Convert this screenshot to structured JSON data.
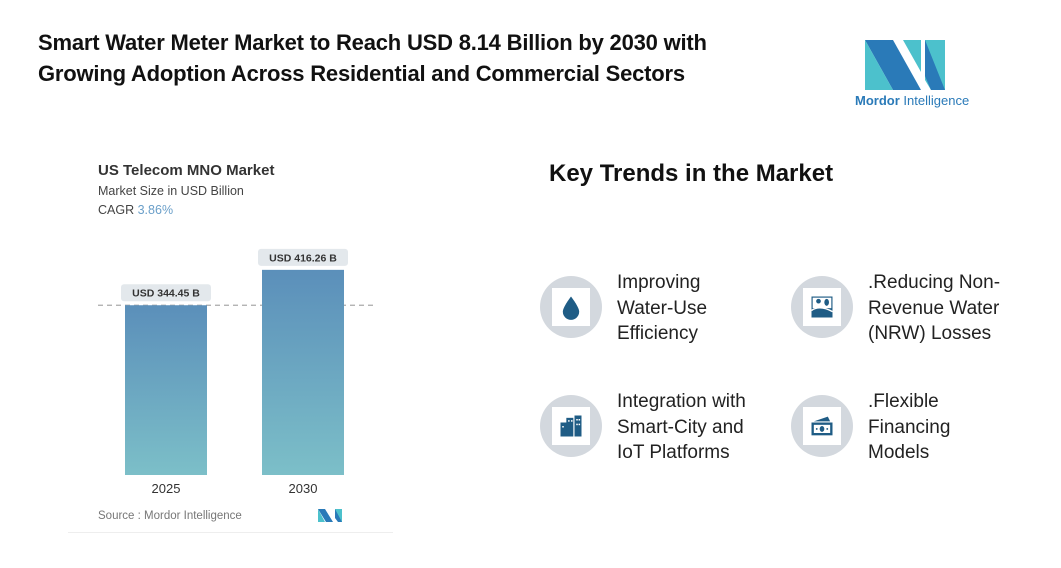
{
  "header": {
    "title_line1": "Smart Water Meter Market to Reach USD 8.14 Billion by 2030 with",
    "title_line2": "Growing Adoption Across Residential and Commercial Sectors"
  },
  "logo": {
    "brand_bold": "Mordor",
    "brand_rest": "Intelligence",
    "colors": [
      "#2a7ab8",
      "#4cc1cc"
    ]
  },
  "chart_data": {
    "type": "bar",
    "title": "US Telecom MNO Market",
    "subtitle": "Market Size in USD Billion",
    "cagr_label": "CAGR",
    "cagr_value": "3.86%",
    "categories": [
      "2025",
      "2030"
    ],
    "values": [
      344.45,
      416.26
    ],
    "data_labels": [
      "USD 344.45 B",
      "USD 416.26 B"
    ],
    "ylim": [
      0,
      420
    ],
    "grid": false,
    "reference_line": "dashed at 2025 value",
    "bar_gradient": [
      "#5b8fba",
      "#7cbfc8"
    ],
    "source": "Source :  Mordor Intelligence"
  },
  "trends": {
    "heading": "Key Trends in the Market",
    "items": [
      {
        "label": "Improving Water-Use Efficiency",
        "lines": [
          "Improving",
          "Water-Use",
          "Efficiency"
        ],
        "icon": "water-drop-icon"
      },
      {
        "label": ".Reducing Non-Revenue Water (NRW) Losses",
        "lines": [
          ".Reducing Non-",
          "Revenue Water",
          "(NRW) Losses"
        ],
        "icon": "landscape-rain-icon"
      },
      {
        "label": "Integration with Smart-City and IoT Platforms",
        "lines": [
          "Integration with",
          "Smart-City and",
          "IoT Platforms"
        ],
        "icon": "city-buildings-icon"
      },
      {
        "label": ".Flexible Financing Models",
        "lines": [
          ".Flexible",
          "Financing",
          "Models"
        ],
        "icon": "money-bills-icon"
      }
    ],
    "icon_color": "#1f5c85"
  }
}
